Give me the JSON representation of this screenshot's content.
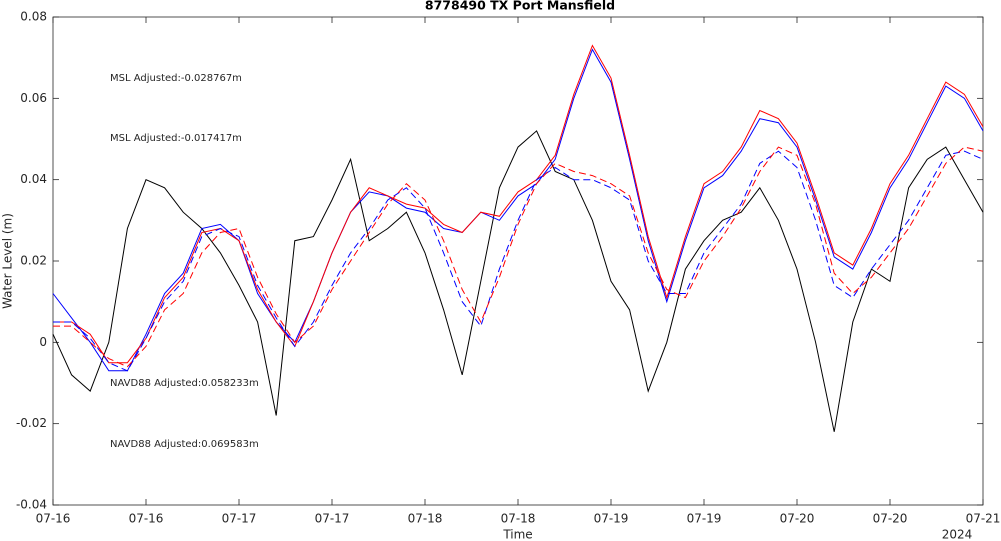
{
  "chart_data": {
    "type": "line",
    "title": "8778490 TX Port Mansfield",
    "y_label": "Water Level (m)",
    "x_label": "Time",
    "x_year_label": "2024",
    "xlim": [
      0,
      5
    ],
    "xticks": [
      {
        "value": 0,
        "label": "07-16"
      },
      {
        "value": 0.5,
        "label": "07-16"
      },
      {
        "value": 1,
        "label": "07-17"
      },
      {
        "value": 1.5,
        "label": "07-17"
      },
      {
        "value": 2,
        "label": "07-18"
      },
      {
        "value": 2.5,
        "label": "07-18"
      },
      {
        "value": 3,
        "label": "07-19"
      },
      {
        "value": 3.5,
        "label": "07-19"
      },
      {
        "value": 4,
        "label": "07-20"
      },
      {
        "value": 4.5,
        "label": "07-20"
      },
      {
        "value": 5,
        "label": "07-21"
      }
    ],
    "ylim": [
      -0.04,
      0.08
    ],
    "yticks": [
      -0.04,
      -0.02,
      0,
      0.02,
      0.04,
      0.06,
      0.08
    ],
    "annotations": [
      {
        "text": "MSL Adjusted:-0.028767m",
        "color": "#0000ff"
      },
      {
        "text": "MSL Adjusted:-0.017417m",
        "color": "#ff0000"
      },
      {
        "text": "NAVD88 Adjusted:0.058233m",
        "color": "#0000ff"
      },
      {
        "text": "NAVD88 Adjusted:0.069583m",
        "color": "#ff0000"
      }
    ],
    "x": [
      0,
      0.1,
      0.2,
      0.3,
      0.4,
      0.5,
      0.6,
      0.7,
      0.8,
      0.9,
      1,
      1.1,
      1.2,
      1.3,
      1.4,
      1.5,
      1.6,
      1.7,
      1.8,
      1.9,
      2,
      2.1,
      2.2,
      2.3,
      2.4,
      2.5,
      2.6,
      2.7,
      2.8,
      2.9,
      3,
      3.1,
      3.2,
      3.3,
      3.4,
      3.5,
      3.6,
      3.7,
      3.8,
      3.9,
      4,
      4.1,
      4.2,
      4.3,
      4.4,
      4.5,
      4.6,
      4.7,
      4.8,
      4.9,
      5
    ],
    "series": [
      {
        "color": "#000000",
        "dashed": false,
        "values": [
          0.002,
          -0.008,
          -0.012,
          0.0,
          0.028,
          0.04,
          0.038,
          0.032,
          0.028,
          0.022,
          0.014,
          0.005,
          -0.018,
          0.025,
          0.026,
          0.035,
          0.045,
          0.025,
          0.028,
          0.032,
          0.022,
          0.008,
          -0.008,
          0.015,
          0.038,
          0.048,
          0.052,
          0.042,
          0.04,
          0.03,
          0.015,
          0.008,
          -0.012,
          0.0,
          0.018,
          0.025,
          0.03,
          0.032,
          0.038,
          0.03,
          0.018,
          0.0,
          -0.022,
          0.005,
          0.018,
          0.015,
          0.038,
          0.045,
          0.048,
          0.04,
          0.032
        ]
      },
      {
        "color": "#0000ff",
        "dashed": false,
        "values": [
          0.012,
          0.006,
          0.0,
          -0.007,
          -0.007,
          0.002,
          0.012,
          0.017,
          0.028,
          0.029,
          0.025,
          0.012,
          0.005,
          0.0,
          0.01,
          0.022,
          0.032,
          0.037,
          0.036,
          0.033,
          0.032,
          0.028,
          0.027,
          0.032,
          0.03,
          0.036,
          0.039,
          0.045,
          0.06,
          0.072,
          0.064,
          0.045,
          0.025,
          0.01,
          0.025,
          0.038,
          0.041,
          0.047,
          0.055,
          0.054,
          0.048,
          0.035,
          0.021,
          0.018,
          0.027,
          0.038,
          0.045,
          0.054,
          0.063,
          0.06,
          0.052
        ]
      },
      {
        "color": "#ff0000",
        "dashed": false,
        "values": [
          0.005,
          0.005,
          0.002,
          -0.005,
          -0.005,
          0.001,
          0.011,
          0.016,
          0.027,
          0.028,
          0.025,
          0.013,
          0.005,
          -0.001,
          0.01,
          0.022,
          0.032,
          0.038,
          0.036,
          0.034,
          0.033,
          0.029,
          0.027,
          0.032,
          0.031,
          0.037,
          0.04,
          0.046,
          0.061,
          0.073,
          0.065,
          0.046,
          0.026,
          0.011,
          0.026,
          0.039,
          0.042,
          0.048,
          0.057,
          0.055,
          0.049,
          0.036,
          0.022,
          0.019,
          0.028,
          0.039,
          0.046,
          0.055,
          0.064,
          0.061,
          0.053
        ]
      },
      {
        "color": "#0000ff",
        "dashed": true,
        "values": [
          0.005,
          0.005,
          0.001,
          -0.005,
          -0.007,
          0.001,
          0.01,
          0.015,
          0.026,
          0.028,
          0.026,
          0.014,
          0.006,
          -0.001,
          0.005,
          0.014,
          0.022,
          0.028,
          0.035,
          0.038,
          0.033,
          0.022,
          0.01,
          0.004,
          0.018,
          0.03,
          0.04,
          0.043,
          0.04,
          0.04,
          0.038,
          0.035,
          0.02,
          0.012,
          0.012,
          0.022,
          0.028,
          0.034,
          0.044,
          0.047,
          0.043,
          0.03,
          0.014,
          0.011,
          0.018,
          0.024,
          0.03,
          0.038,
          0.046,
          0.047,
          0.045
        ]
      },
      {
        "color": "#ff0000",
        "dashed": true,
        "values": [
          0.004,
          0.004,
          0.0,
          -0.004,
          -0.006,
          -0.001,
          0.008,
          0.012,
          0.022,
          0.027,
          0.028,
          0.016,
          0.007,
          0.0,
          0.004,
          0.013,
          0.02,
          0.027,
          0.034,
          0.039,
          0.035,
          0.025,
          0.013,
          0.005,
          0.016,
          0.029,
          0.039,
          0.044,
          0.042,
          0.041,
          0.039,
          0.036,
          0.022,
          0.013,
          0.011,
          0.02,
          0.026,
          0.033,
          0.042,
          0.048,
          0.046,
          0.034,
          0.017,
          0.012,
          0.016,
          0.022,
          0.028,
          0.036,
          0.044,
          0.048,
          0.047
        ]
      }
    ]
  }
}
